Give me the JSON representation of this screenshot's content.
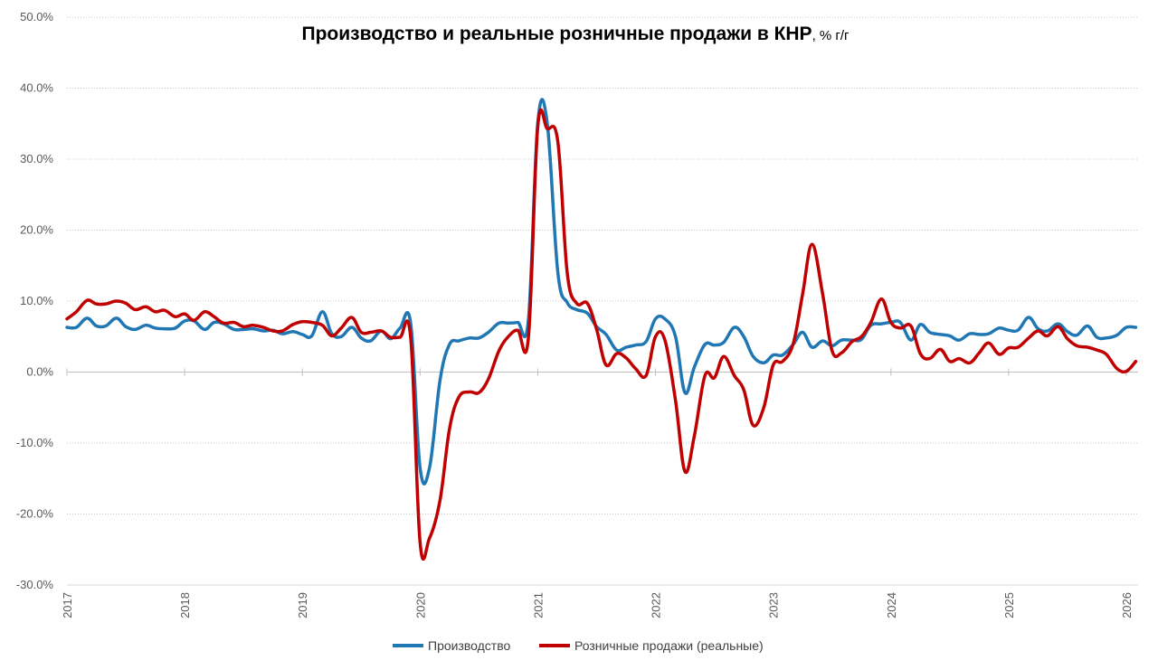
{
  "chart_data": {
    "type": "line",
    "title": "Производство и реальные розничные продажи в КНР",
    "title_suffix": ", % г/г",
    "xlabel": "",
    "ylabel": "",
    "ylim": [
      -30,
      50
    ],
    "y_ticks": [
      -30,
      -20,
      -10,
      0,
      10,
      20,
      30,
      40,
      50
    ],
    "y_tick_labels": [
      "-30.0%",
      "-20.0%",
      "-10.0%",
      "0.0%",
      "10.0%",
      "20.0%",
      "30.0%",
      "40.0%",
      "50.0%"
    ],
    "x_range": [
      2017.0,
      2026.1
    ],
    "x_ticks": [
      2017,
      2018,
      2019,
      2020,
      2021,
      2022,
      2023,
      2024,
      2025,
      2026
    ],
    "x_tick_labels": [
      "2017",
      "2018",
      "2019",
      "2020",
      "2021",
      "2022",
      "2023",
      "2024",
      "2025",
      "2026"
    ],
    "grid": "horizontal dotted",
    "legend_position": "bottom",
    "series": [
      {
        "name": "Производство",
        "color": "#1f77b4",
        "points": [
          [
            2017.0,
            6.3
          ],
          [
            2017.08,
            6.3
          ],
          [
            2017.17,
            7.6
          ],
          [
            2017.25,
            6.5
          ],
          [
            2017.33,
            6.5
          ],
          [
            2017.42,
            7.6
          ],
          [
            2017.5,
            6.4
          ],
          [
            2017.58,
            6.0
          ],
          [
            2017.67,
            6.6
          ],
          [
            2017.75,
            6.2
          ],
          [
            2017.83,
            6.1
          ],
          [
            2017.92,
            6.2
          ],
          [
            2018.0,
            7.2
          ],
          [
            2018.08,
            7.2
          ],
          [
            2018.17,
            6.0
          ],
          [
            2018.25,
            7.0
          ],
          [
            2018.33,
            6.8
          ],
          [
            2018.42,
            6.0
          ],
          [
            2018.5,
            6.0
          ],
          [
            2018.58,
            6.1
          ],
          [
            2018.67,
            5.8
          ],
          [
            2018.75,
            5.9
          ],
          [
            2018.83,
            5.4
          ],
          [
            2018.92,
            5.7
          ],
          [
            2019.0,
            5.3
          ],
          [
            2019.08,
            5.1
          ],
          [
            2019.17,
            8.5
          ],
          [
            2019.25,
            5.4
          ],
          [
            2019.33,
            5.0
          ],
          [
            2019.42,
            6.3
          ],
          [
            2019.5,
            4.8
          ],
          [
            2019.58,
            4.4
          ],
          [
            2019.67,
            5.8
          ],
          [
            2019.75,
            4.7
          ],
          [
            2019.83,
            6.2
          ],
          [
            2019.92,
            6.9
          ],
          [
            2020.0,
            -13.5
          ],
          [
            2020.08,
            -13.5
          ],
          [
            2020.17,
            -1.1
          ],
          [
            2020.25,
            3.9
          ],
          [
            2020.33,
            4.4
          ],
          [
            2020.42,
            4.8
          ],
          [
            2020.5,
            4.8
          ],
          [
            2020.58,
            5.6
          ],
          [
            2020.67,
            6.9
          ],
          [
            2020.75,
            6.9
          ],
          [
            2020.83,
            7.0
          ],
          [
            2020.92,
            7.3
          ],
          [
            2021.0,
            35.1
          ],
          [
            2021.08,
            35.1
          ],
          [
            2021.17,
            14.1
          ],
          [
            2021.25,
            9.8
          ],
          [
            2021.33,
            8.8
          ],
          [
            2021.42,
            8.3
          ],
          [
            2021.5,
            6.4
          ],
          [
            2021.58,
            5.3
          ],
          [
            2021.67,
            3.1
          ],
          [
            2021.75,
            3.5
          ],
          [
            2021.83,
            3.8
          ],
          [
            2021.92,
            4.3
          ],
          [
            2022.0,
            7.5
          ],
          [
            2022.08,
            7.5
          ],
          [
            2022.17,
            5.0
          ],
          [
            2022.25,
            -2.9
          ],
          [
            2022.33,
            0.7
          ],
          [
            2022.42,
            3.9
          ],
          [
            2022.5,
            3.8
          ],
          [
            2022.58,
            4.2
          ],
          [
            2022.67,
            6.3
          ],
          [
            2022.75,
            5.0
          ],
          [
            2022.83,
            2.2
          ],
          [
            2022.92,
            1.3
          ],
          [
            2023.0,
            2.4
          ],
          [
            2023.08,
            2.4
          ],
          [
            2023.17,
            3.9
          ],
          [
            2023.25,
            5.6
          ],
          [
            2023.33,
            3.5
          ],
          [
            2023.42,
            4.4
          ],
          [
            2023.5,
            3.7
          ],
          [
            2023.58,
            4.5
          ],
          [
            2023.67,
            4.5
          ],
          [
            2023.75,
            4.6
          ],
          [
            2023.83,
            6.6
          ],
          [
            2023.92,
            6.8
          ],
          [
            2024.0,
            7.0
          ],
          [
            2024.08,
            7.0
          ],
          [
            2024.17,
            4.5
          ],
          [
            2024.25,
            6.7
          ],
          [
            2024.33,
            5.6
          ],
          [
            2024.42,
            5.3
          ],
          [
            2024.5,
            5.1
          ],
          [
            2024.58,
            4.5
          ],
          [
            2024.67,
            5.4
          ],
          [
            2024.75,
            5.3
          ],
          [
            2024.83,
            5.4
          ],
          [
            2024.92,
            6.2
          ],
          [
            2025.0,
            5.9
          ],
          [
            2025.08,
            5.9
          ],
          [
            2025.17,
            7.7
          ],
          [
            2025.25,
            6.1
          ],
          [
            2025.33,
            5.8
          ],
          [
            2025.42,
            6.8
          ],
          [
            2025.5,
            5.7
          ],
          [
            2025.58,
            5.2
          ],
          [
            2025.67,
            6.5
          ],
          [
            2025.75,
            4.9
          ],
          [
            2025.83,
            4.8
          ],
          [
            2025.92,
            5.2
          ],
          [
            2026.0,
            6.3
          ],
          [
            2026.08,
            6.3
          ]
        ]
      },
      {
        "name": "Розничные продажи (реальные)",
        "color": "#c00000",
        "points": [
          [
            2017.0,
            7.5
          ],
          [
            2017.08,
            8.5
          ],
          [
            2017.17,
            10.1
          ],
          [
            2017.25,
            9.6
          ],
          [
            2017.33,
            9.6
          ],
          [
            2017.42,
            10.0
          ],
          [
            2017.5,
            9.7
          ],
          [
            2017.58,
            8.8
          ],
          [
            2017.67,
            9.2
          ],
          [
            2017.75,
            8.5
          ],
          [
            2017.83,
            8.7
          ],
          [
            2017.92,
            7.8
          ],
          [
            2018.0,
            8.2
          ],
          [
            2018.08,
            7.3
          ],
          [
            2018.17,
            8.5
          ],
          [
            2018.25,
            7.8
          ],
          [
            2018.33,
            6.9
          ],
          [
            2018.42,
            7.0
          ],
          [
            2018.5,
            6.4
          ],
          [
            2018.58,
            6.6
          ],
          [
            2018.67,
            6.3
          ],
          [
            2018.75,
            5.8
          ],
          [
            2018.83,
            5.8
          ],
          [
            2018.92,
            6.7
          ],
          [
            2019.0,
            7.1
          ],
          [
            2019.08,
            7.0
          ],
          [
            2019.17,
            6.6
          ],
          [
            2019.25,
            5.1
          ],
          [
            2019.33,
            6.2
          ],
          [
            2019.42,
            7.7
          ],
          [
            2019.5,
            5.6
          ],
          [
            2019.58,
            5.6
          ],
          [
            2019.67,
            5.8
          ],
          [
            2019.75,
            4.9
          ],
          [
            2019.83,
            4.9
          ],
          [
            2019.92,
            4.9
          ],
          [
            2020.0,
            -24.0
          ],
          [
            2020.08,
            -23.4
          ],
          [
            2020.17,
            -18.0
          ],
          [
            2020.25,
            -8.0
          ],
          [
            2020.33,
            -3.5
          ],
          [
            2020.42,
            -2.8
          ],
          [
            2020.5,
            -2.9
          ],
          [
            2020.58,
            -1.0
          ],
          [
            2020.67,
            3.0
          ],
          [
            2020.75,
            5.0
          ],
          [
            2020.83,
            5.9
          ],
          [
            2020.92,
            4.8
          ],
          [
            2021.0,
            34.6
          ],
          [
            2021.08,
            34.3
          ],
          [
            2021.17,
            32.5
          ],
          [
            2021.25,
            14.0
          ],
          [
            2021.33,
            9.7
          ],
          [
            2021.42,
            9.7
          ],
          [
            2021.5,
            6.0
          ],
          [
            2021.58,
            1.0
          ],
          [
            2021.67,
            2.6
          ],
          [
            2021.75,
            2.0
          ],
          [
            2021.83,
            0.5
          ],
          [
            2021.92,
            -0.5
          ],
          [
            2022.0,
            5.0
          ],
          [
            2022.08,
            4.5
          ],
          [
            2022.17,
            -4.0
          ],
          [
            2022.25,
            -14.0
          ],
          [
            2022.33,
            -9.0
          ],
          [
            2022.42,
            -0.5
          ],
          [
            2022.5,
            -0.8
          ],
          [
            2022.58,
            2.2
          ],
          [
            2022.67,
            -0.5
          ],
          [
            2022.75,
            -2.5
          ],
          [
            2022.83,
            -7.5
          ],
          [
            2022.92,
            -5.0
          ],
          [
            2023.0,
            1.0
          ],
          [
            2023.08,
            1.5
          ],
          [
            2023.17,
            4.0
          ],
          [
            2023.25,
            11.0
          ],
          [
            2023.33,
            18.0
          ],
          [
            2023.42,
            11.0
          ],
          [
            2023.5,
            3.0
          ],
          [
            2023.58,
            2.7
          ],
          [
            2023.67,
            4.3
          ],
          [
            2023.75,
            5.0
          ],
          [
            2023.83,
            7.0
          ],
          [
            2023.92,
            10.3
          ],
          [
            2024.0,
            7.0
          ],
          [
            2024.08,
            6.2
          ],
          [
            2024.17,
            6.5
          ],
          [
            2024.25,
            2.6
          ],
          [
            2024.33,
            1.9
          ],
          [
            2024.42,
            3.2
          ],
          [
            2024.5,
            1.5
          ],
          [
            2024.58,
            1.9
          ],
          [
            2024.67,
            1.3
          ],
          [
            2024.75,
            2.7
          ],
          [
            2024.83,
            4.1
          ],
          [
            2024.92,
            2.5
          ],
          [
            2025.0,
            3.4
          ],
          [
            2025.08,
            3.5
          ],
          [
            2025.17,
            4.8
          ],
          [
            2025.25,
            5.8
          ],
          [
            2025.33,
            5.1
          ],
          [
            2025.42,
            6.4
          ],
          [
            2025.5,
            4.7
          ],
          [
            2025.58,
            3.7
          ],
          [
            2025.67,
            3.5
          ],
          [
            2025.75,
            3.1
          ],
          [
            2025.83,
            2.5
          ],
          [
            2025.92,
            0.5
          ],
          [
            2026.0,
            0.1
          ],
          [
            2026.08,
            1.5
          ]
        ]
      }
    ]
  }
}
